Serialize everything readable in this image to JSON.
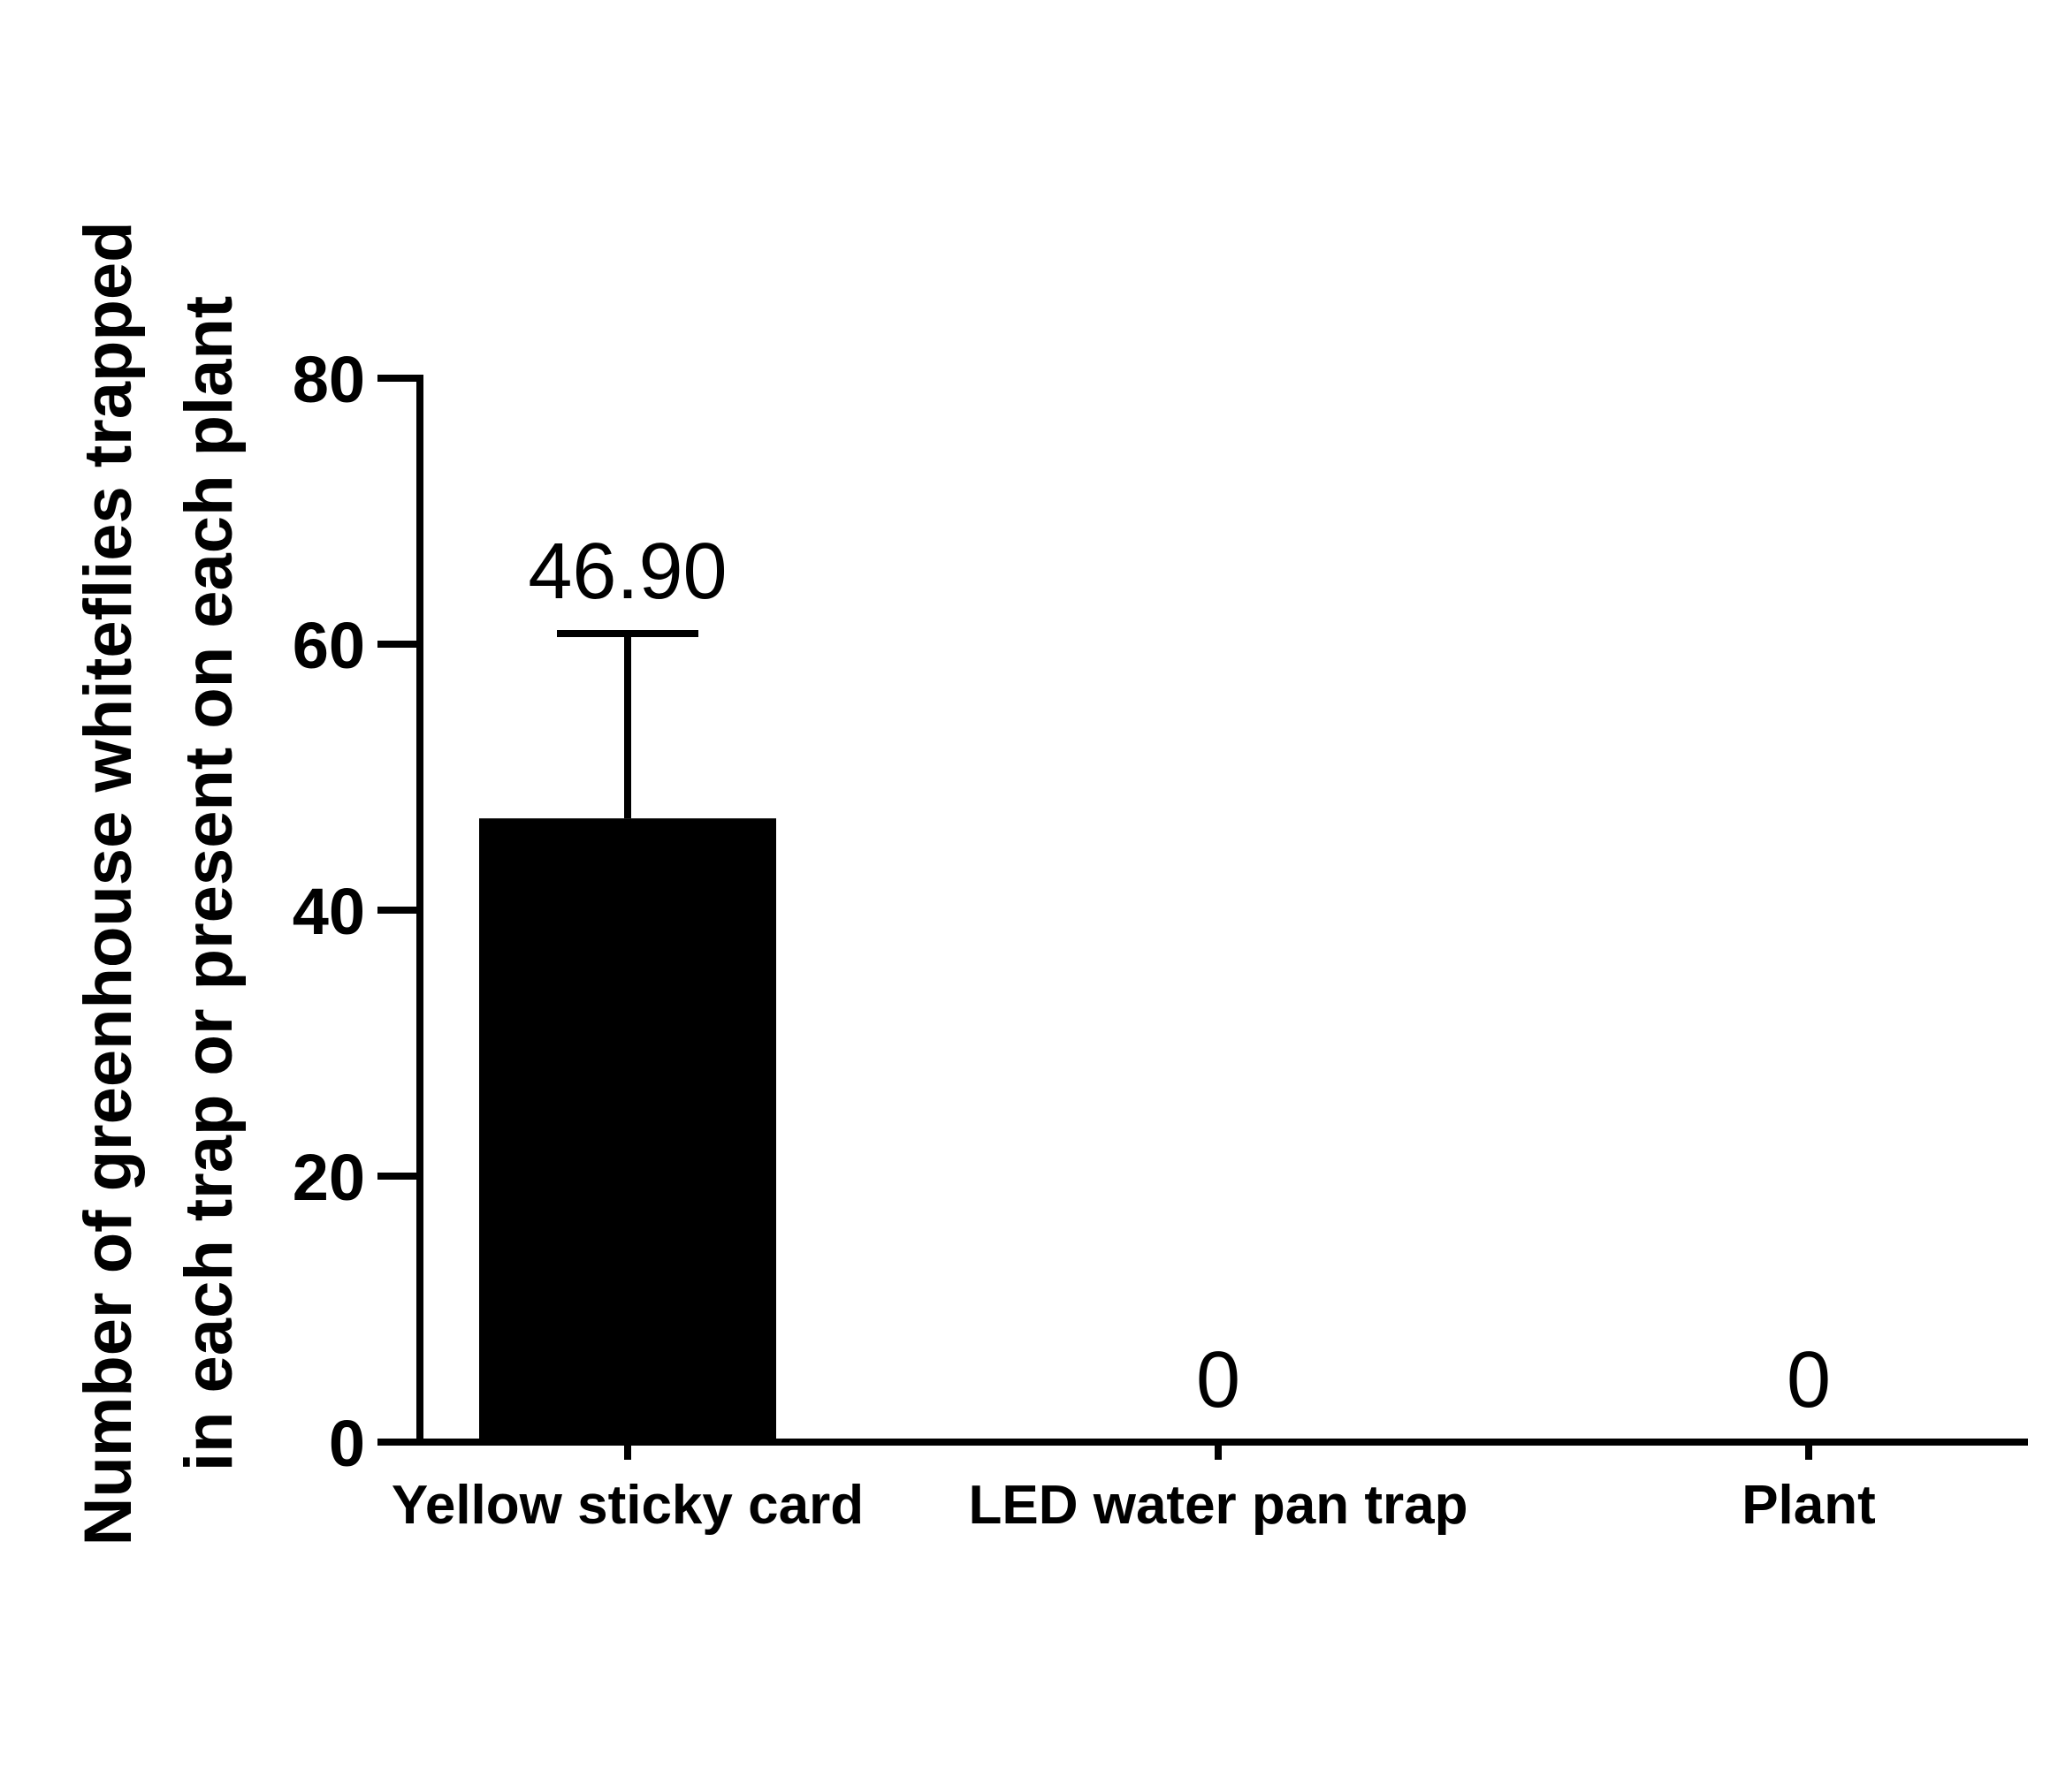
{
  "chart_data": {
    "type": "bar",
    "categories": [
      "Yellow sticky card",
      "LED water pan trap",
      "Plant"
    ],
    "values": [
      46.9,
      0,
      0
    ],
    "error_upper": [
      60.8,
      null,
      null
    ],
    "data_labels": [
      "46.90",
      "0",
      "0"
    ],
    "ylabel_lines": [
      "Number of greenhouse whiteflies trapped",
      "in each trap or present on each plant"
    ],
    "xlabel": "",
    "ylim": [
      0,
      80
    ],
    "yticks": [
      0,
      20,
      40,
      60,
      80
    ],
    "ytick_labels": [
      "0",
      "20",
      "40",
      "60",
      "80"
    ],
    "grid": false,
    "legend": "none",
    "bar_color": "#000000"
  }
}
